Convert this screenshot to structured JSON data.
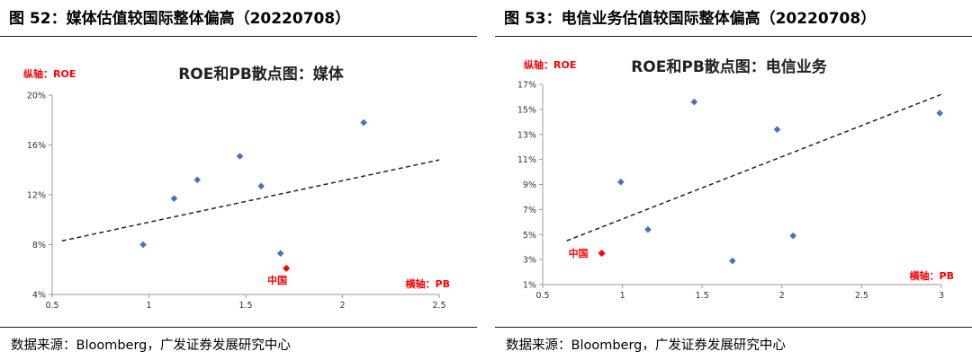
{
  "figures": [
    {
      "title": "图 52：媒体估值较国际整体偏高（20220708）",
      "source": "数据来源：Bloomberg，广发证券发展研究中心",
      "chart_data": {
        "type": "scatter",
        "title": "ROE和PB散点图：媒体",
        "ylabel": "纵轴：ROE",
        "xlabel": "横轴：PB",
        "xlim": [
          0.5,
          2.5
        ],
        "ylim": [
          4,
          20
        ],
        "x_ticks": [
          "0.5",
          "1",
          "1.5",
          "2",
          "2.5"
        ],
        "y_ticks": [
          "4%",
          "8%",
          "12%",
          "16%",
          "20%"
        ],
        "points": [
          {
            "x": 0.97,
            "y": 8.0
          },
          {
            "x": 1.13,
            "y": 11.7
          },
          {
            "x": 1.25,
            "y": 13.2
          },
          {
            "x": 1.47,
            "y": 15.1
          },
          {
            "x": 1.58,
            "y": 12.7
          },
          {
            "x": 1.68,
            "y": 7.3
          },
          {
            "x": 2.11,
            "y": 17.8
          }
        ],
        "highlight": {
          "label": "中国",
          "x": 1.71,
          "y": 6.1
        },
        "trendline": {
          "x1": 0.55,
          "y1": 8.3,
          "x2": 2.5,
          "y2": 14.8
        },
        "colors": {
          "points": "#4472C4",
          "highlight": "#FF0000",
          "axis_titles": "#FF0000"
        },
        "grid": false
      }
    },
    {
      "title": "图 53：电信业务估值较国际整体偏高（20220708）",
      "source": "数据来源：Bloomberg，广发证券发展研究中心",
      "chart_data": {
        "type": "scatter",
        "title": "ROE和PB散点图：电信业务",
        "ylabel": "纵轴：ROE",
        "xlabel": "横轴：PB",
        "xlim": [
          0.5,
          3
        ],
        "ylim": [
          1,
          17
        ],
        "x_ticks": [
          "0.5",
          "1",
          "1.5",
          "2",
          "2.5",
          "3"
        ],
        "y_ticks": [
          "1%",
          "3%",
          "5%",
          "7%",
          "9%",
          "11%",
          "13%",
          "15%",
          "17%"
        ],
        "points": [
          {
            "x": 0.99,
            "y": 9.2
          },
          {
            "x": 1.16,
            "y": 5.4
          },
          {
            "x": 1.45,
            "y": 15.6
          },
          {
            "x": 1.69,
            "y": 2.9
          },
          {
            "x": 1.97,
            "y": 13.4
          },
          {
            "x": 2.07,
            "y": 4.9
          },
          {
            "x": 2.99,
            "y": 14.7
          }
        ],
        "highlight": {
          "label": "中国",
          "x": 0.87,
          "y": 3.5
        },
        "trendline": {
          "x1": 0.65,
          "y1": 4.5,
          "x2": 3.0,
          "y2": 16.2
        },
        "colors": {
          "points": "#4472C4",
          "highlight": "#FF0000",
          "axis_titles": "#FF0000"
        },
        "grid": false
      }
    }
  ]
}
